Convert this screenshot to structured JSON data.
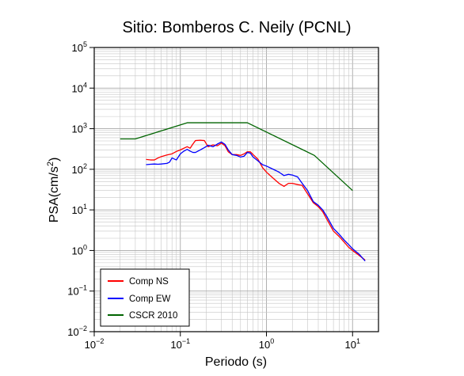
{
  "chart_data": {
    "type": "line",
    "title": "Sitio: Bomberos C. Neily (PCNL)",
    "xlabel": "Periodo (s)",
    "ylabel": "PSA(cm/s²)",
    "ylabel_main": "PSA(cm/s",
    "ylabel_sup": "2",
    "ylabel_end": ")",
    "xscale": "log",
    "yscale": "log",
    "xlim": [
      0.01,
      20
    ],
    "ylim": [
      0.01,
      100000
    ],
    "grid": true,
    "legend_position": "bottom-left",
    "x_ticks": [
      {
        "value": 0.01,
        "base": "10",
        "exp": "−2"
      },
      {
        "value": 0.1,
        "base": "10",
        "exp": "−1"
      },
      {
        "value": 1,
        "base": "10",
        "exp": "0"
      },
      {
        "value": 10,
        "base": "10",
        "exp": "1"
      }
    ],
    "y_ticks": [
      {
        "value": 0.01,
        "base": "10",
        "exp": "−2"
      },
      {
        "value": 0.1,
        "base": "10",
        "exp": "−1"
      },
      {
        "value": 1,
        "base": "10",
        "exp": "0"
      },
      {
        "value": 10,
        "base": "10",
        "exp": "1"
      },
      {
        "value": 100,
        "base": "10",
        "exp": "2"
      },
      {
        "value": 1000,
        "base": "10",
        "exp": "3"
      },
      {
        "value": 10000,
        "base": "10",
        "exp": "4"
      },
      {
        "value": 100000,
        "base": "10",
        "exp": "5"
      }
    ],
    "series": [
      {
        "name": "Comp NS",
        "color": "#ff0000",
        "points": [
          [
            0.04,
            175
          ],
          [
            0.045,
            170
          ],
          [
            0.05,
            170
          ],
          [
            0.055,
            190
          ],
          [
            0.06,
            205
          ],
          [
            0.07,
            225
          ],
          [
            0.08,
            240
          ],
          [
            0.09,
            275
          ],
          [
            0.1,
            300
          ],
          [
            0.11,
            330
          ],
          [
            0.12,
            360
          ],
          [
            0.13,
            330
          ],
          [
            0.14,
            420
          ],
          [
            0.15,
            510
          ],
          [
            0.17,
            520
          ],
          [
            0.19,
            510
          ],
          [
            0.21,
            360
          ],
          [
            0.24,
            400
          ],
          [
            0.27,
            380
          ],
          [
            0.3,
            440
          ],
          [
            0.33,
            380
          ],
          [
            0.36,
            270
          ],
          [
            0.4,
            230
          ],
          [
            0.45,
            230
          ],
          [
            0.5,
            220
          ],
          [
            0.55,
            240
          ],
          [
            0.6,
            270
          ],
          [
            0.65,
            270
          ],
          [
            0.7,
            230
          ],
          [
            0.8,
            175
          ],
          [
            0.9,
            110
          ],
          [
            1.0,
            85
          ],
          [
            1.2,
            60
          ],
          [
            1.4,
            45
          ],
          [
            1.6,
            38
          ],
          [
            1.8,
            45
          ],
          [
            2.0,
            45
          ],
          [
            2.3,
            42
          ],
          [
            2.6,
            40
          ],
          [
            3.0,
            25
          ],
          [
            3.5,
            15
          ],
          [
            4.0,
            12
          ],
          [
            4.5,
            9
          ],
          [
            5.0,
            6
          ],
          [
            6.0,
            3
          ],
          [
            7.0,
            2.2
          ],
          [
            8.0,
            1.6
          ],
          [
            9.0,
            1.2
          ],
          [
            10.0,
            1.0
          ],
          [
            12.0,
            0.75
          ],
          [
            14.0,
            0.58
          ]
        ]
      },
      {
        "name": "Comp EW",
        "color": "#0000ff",
        "points": [
          [
            0.04,
            130
          ],
          [
            0.045,
            133
          ],
          [
            0.05,
            135
          ],
          [
            0.055,
            133
          ],
          [
            0.06,
            135
          ],
          [
            0.07,
            140
          ],
          [
            0.075,
            150
          ],
          [
            0.08,
            190
          ],
          [
            0.09,
            170
          ],
          [
            0.1,
            240
          ],
          [
            0.11,
            280
          ],
          [
            0.12,
            310
          ],
          [
            0.13,
            280
          ],
          [
            0.14,
            260
          ],
          [
            0.15,
            260
          ],
          [
            0.17,
            300
          ],
          [
            0.19,
            340
          ],
          [
            0.21,
            390
          ],
          [
            0.24,
            360
          ],
          [
            0.27,
            420
          ],
          [
            0.3,
            470
          ],
          [
            0.33,
            410
          ],
          [
            0.36,
            300
          ],
          [
            0.4,
            230
          ],
          [
            0.45,
            220
          ],
          [
            0.5,
            200
          ],
          [
            0.55,
            210
          ],
          [
            0.6,
            260
          ],
          [
            0.65,
            250
          ],
          [
            0.7,
            200
          ],
          [
            0.8,
            160
          ],
          [
            0.9,
            130
          ],
          [
            1.0,
            120
          ],
          [
            1.2,
            100
          ],
          [
            1.4,
            85
          ],
          [
            1.6,
            70
          ],
          [
            1.8,
            75
          ],
          [
            2.0,
            72
          ],
          [
            2.3,
            65
          ],
          [
            2.6,
            45
          ],
          [
            3.0,
            30
          ],
          [
            3.5,
            16
          ],
          [
            4.0,
            13
          ],
          [
            4.5,
            10
          ],
          [
            5.0,
            7
          ],
          [
            6.0,
            3.5
          ],
          [
            7.0,
            2.5
          ],
          [
            8.0,
            1.8
          ],
          [
            9.0,
            1.4
          ],
          [
            10.0,
            1.1
          ],
          [
            12.0,
            0.8
          ],
          [
            14.0,
            0.55
          ]
        ]
      },
      {
        "name": "CSCR 2010",
        "color": "#006400",
        "points": [
          [
            0.02,
            560
          ],
          [
            0.03,
            560
          ],
          [
            0.12,
            1400
          ],
          [
            0.6,
            1400
          ],
          [
            3.6,
            220
          ],
          [
            10.0,
            30
          ]
        ]
      }
    ]
  }
}
